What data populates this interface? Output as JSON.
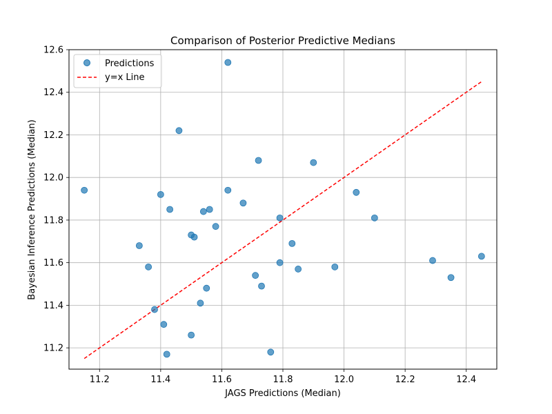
{
  "chart_data": {
    "type": "scatter",
    "title": "Comparison of Posterior Predictive Medians",
    "xlabel": "JAGS Predictions (Median)",
    "ylabel": "Bayesian Inference Predictions (Median)",
    "xlim": [
      11.1,
      12.5
    ],
    "ylim": [
      11.1,
      12.6
    ],
    "xticks": [
      11.2,
      11.4,
      11.6,
      11.8,
      12.0,
      12.2,
      12.4
    ],
    "yticks": [
      11.2,
      11.4,
      11.6,
      11.8,
      12.0,
      12.2,
      12.4,
      12.6
    ],
    "grid": true,
    "legend_position": "top-left",
    "series": [
      {
        "name": "Predictions",
        "kind": "scatter",
        "color": "#1f77b4",
        "points": [
          [
            11.15,
            11.94
          ],
          [
            11.33,
            11.68
          ],
          [
            11.36,
            11.58
          ],
          [
            11.38,
            11.38
          ],
          [
            11.4,
            11.92
          ],
          [
            11.41,
            11.31
          ],
          [
            11.42,
            11.17
          ],
          [
            11.43,
            11.85
          ],
          [
            11.46,
            12.22
          ],
          [
            11.5,
            11.73
          ],
          [
            11.5,
            11.26
          ],
          [
            11.51,
            11.72
          ],
          [
            11.54,
            11.84
          ],
          [
            11.53,
            11.41
          ],
          [
            11.55,
            11.48
          ],
          [
            11.56,
            11.85
          ],
          [
            11.58,
            11.77
          ],
          [
            11.62,
            12.54
          ],
          [
            11.62,
            11.94
          ],
          [
            11.67,
            11.88
          ],
          [
            11.71,
            11.54
          ],
          [
            11.72,
            12.08
          ],
          [
            11.73,
            11.49
          ],
          [
            11.76,
            11.18
          ],
          [
            11.79,
            11.6
          ],
          [
            11.79,
            11.81
          ],
          [
            11.83,
            11.69
          ],
          [
            11.85,
            11.57
          ],
          [
            11.9,
            12.07
          ],
          [
            11.97,
            11.58
          ],
          [
            12.04,
            11.93
          ],
          [
            12.1,
            11.81
          ],
          [
            12.29,
            11.61
          ],
          [
            12.35,
            11.53
          ],
          [
            12.45,
            11.63
          ]
        ]
      },
      {
        "name": "y=x Line",
        "kind": "line",
        "style": "dashed",
        "color": "#ff0000",
        "points": [
          [
            11.15,
            11.15
          ],
          [
            12.45,
            12.45
          ]
        ]
      }
    ]
  }
}
